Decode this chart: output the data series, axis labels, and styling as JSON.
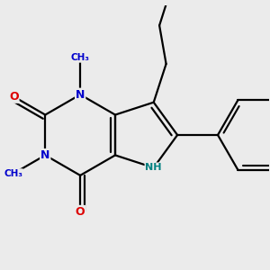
{
  "bg_color": "#ebebeb",
  "bond_color": "#000000",
  "n_color": "#0000cc",
  "o_color": "#dd0000",
  "nh_color": "#008080",
  "lw": 1.6,
  "lw_ph": 1.5,
  "figsize": [
    3.0,
    3.0
  ],
  "dpi": 100,
  "xlim": [
    -2.8,
    3.8
  ],
  "ylim": [
    -3.2,
    3.2
  ]
}
